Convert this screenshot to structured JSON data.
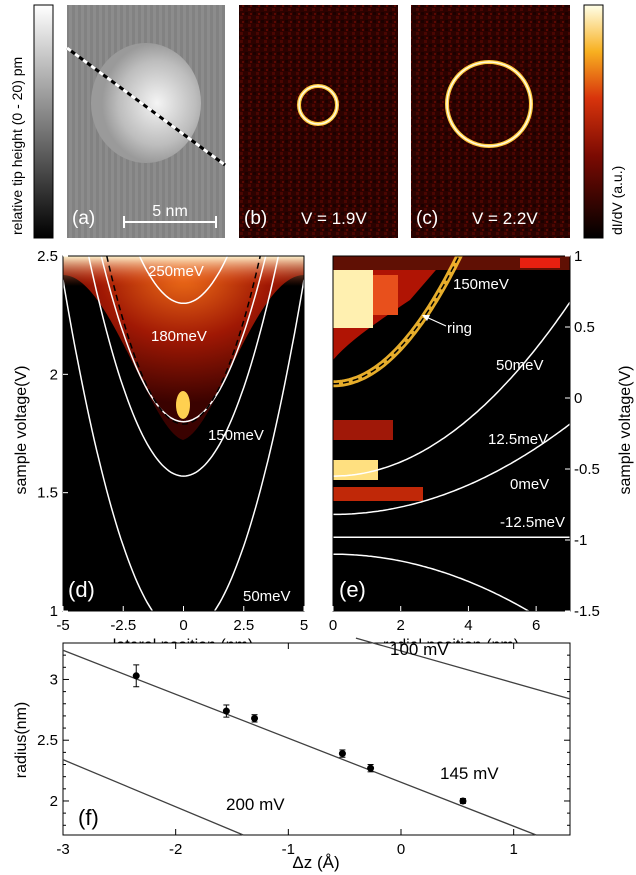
{
  "top_row": {
    "colorbar_left_label": "relative tip height (0 - 20) pm",
    "colorbar_right_label": "dI/dV  (a.u.)",
    "panel_a": {
      "tag": "(a)",
      "scalebar": "5 nm"
    },
    "panel_b": {
      "tag": "(b)",
      "voltage": "V = 1.9V"
    },
    "panel_c": {
      "tag": "(c)",
      "voltage": "V = 2.2V"
    }
  },
  "colors": {
    "hot_low": "#000000",
    "hot_mid": "#c01b08",
    "hot_high": "#ffffe0",
    "curve": "#ffffff",
    "fit_line": "#404040"
  },
  "chart_data": [
    {
      "type": "heatmap",
      "panel": "(d)",
      "xlabel": "lateral position (nm)",
      "ylabel": "sample voltage(V)",
      "xlim": [
        -5,
        5
      ],
      "ylim": [
        1,
        2.5
      ],
      "xticks": [
        "-5",
        "-2.5",
        "0",
        "2.5",
        "5"
      ],
      "yticks": [
        "1",
        "1.5",
        "2",
        "2.5"
      ],
      "contours": [
        {
          "name": "250meV",
          "y0": 2.3,
          "k": 0.06
        },
        {
          "name": "180meV",
          "y0": 1.8,
          "k": 0.06
        },
        {
          "name": "150meV",
          "y0": 1.57,
          "k": 0.06
        },
        {
          "name": "50meV",
          "y0": 0.9,
          "k": 0.06
        }
      ],
      "dashed": {
        "y0": 1.79,
        "k": 0.07
      }
    },
    {
      "type": "heatmap",
      "panel": "(e)",
      "xlabel": "radial position (nm)",
      "ylabel": "sample voltage(V)",
      "xlim": [
        0,
        7
      ],
      "ylim": [
        -1.5,
        1
      ],
      "xticks": [
        "0",
        "2",
        "4",
        "6"
      ],
      "yticks": [
        "-1.5",
        "-1",
        "-0.5",
        "0",
        "0.5",
        "1"
      ],
      "annotation": "ring",
      "contours": [
        {
          "name": "150meV",
          "y0": 0.1,
          "k": 0.065
        },
        {
          "name": "50meV",
          "y0": -0.55,
          "k": 0.025
        },
        {
          "name": "12.5meV",
          "y0": -0.82,
          "k": 0.013
        },
        {
          "name": "0meV",
          "y0": -0.98,
          "k": 0
        },
        {
          "name": "-12.5meV",
          "y0": -1.1,
          "k": -0.012
        }
      ]
    },
    {
      "type": "scatter",
      "panel": "(f)",
      "xlabel": "Δz (Å)",
      "ylabel": "radius(nm)",
      "xlim": [
        -3,
        1.5
      ],
      "ylim": [
        1.72,
        3.3
      ],
      "xticks": [
        "-3",
        "-2",
        "-1",
        "0",
        "1"
      ],
      "yticks": [
        "2",
        "2.5",
        "3"
      ],
      "points": [
        {
          "x": -2.35,
          "y": 3.03,
          "err": 0.09
        },
        {
          "x": -1.55,
          "y": 2.74,
          "err": 0.05
        },
        {
          "x": -1.3,
          "y": 2.68,
          "err": 0.03
        },
        {
          "x": -0.52,
          "y": 2.39,
          "err": 0.03
        },
        {
          "x": -0.27,
          "y": 2.27,
          "err": 0.03
        },
        {
          "x": 0.55,
          "y": 2.0,
          "err": 0.02
        }
      ],
      "lines": [
        {
          "name": "100 mV",
          "x1": -0.4,
          "y1": 3.34,
          "x2": 1.5,
          "y2": 2.84
        },
        {
          "name": "145 mV",
          "x1": -3,
          "y1": 3.24,
          "x2": 1.2,
          "y2": 1.72
        },
        {
          "name": "200 mV",
          "x1": -3,
          "y1": 2.34,
          "x2": -1.4,
          "y2": 1.72
        }
      ]
    }
  ]
}
